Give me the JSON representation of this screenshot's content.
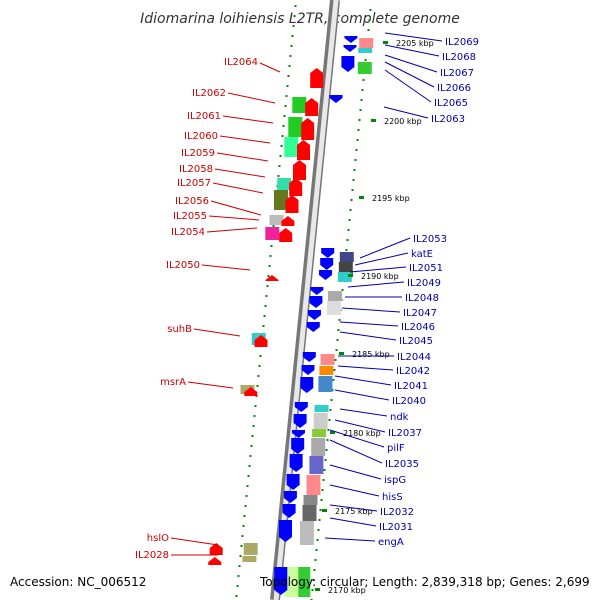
{
  "title": "Idiomarina loihiensis L2TR, complete genome",
  "footer": {
    "accession": "Accession: NC_006512",
    "info": "Topology: circular; Length: 2,839,318 bp; Genes: 2,699"
  },
  "colors": {
    "forward_gene": "#ff0000",
    "reverse_gene": "#0000ff",
    "left_label": "#cc0000",
    "right_label": "#0000aa",
    "tick": "#008800",
    "backbone": "#999999"
  },
  "kbp_labels": [
    "2205 kbp",
    "2200 kbp",
    "2195 kbp",
    "2190 kbp",
    "2185 kbp",
    "2180 kbp",
    "2175 kbp",
    "2170 kbp"
  ],
  "left_genes": [
    "IL2064",
    "IL2062",
    "IL2061",
    "IL2060",
    "IL2059",
    "IL2058",
    "IL2057",
    "IL2056",
    "IL2055",
    "IL2054",
    "IL2050",
    "suhB",
    "msrA",
    "hslO",
    "IL2028"
  ],
  "right_genes": [
    "IL2069",
    "IL2068",
    "IL2067",
    "IL2066",
    "IL2065",
    "IL2063",
    "IL2053",
    "katE",
    "IL2051",
    "IL2049",
    "IL2048",
    "IL2047",
    "IL2046",
    "IL2045",
    "IL2044",
    "IL2042",
    "IL2041",
    "IL2040",
    "ndk",
    "IL2037",
    "pilF",
    "IL2035",
    "ispG",
    "hisS",
    "IL2032",
    "IL2031",
    "engA"
  ]
}
